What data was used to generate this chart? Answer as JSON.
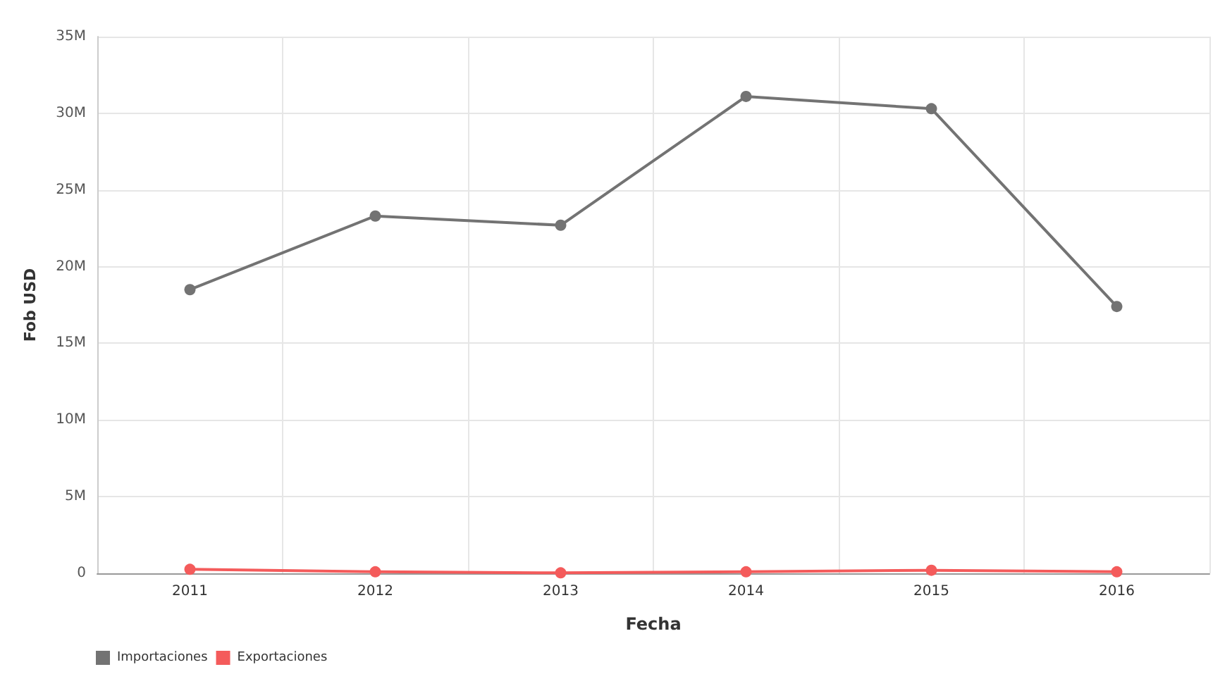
{
  "chart_data": {
    "type": "line",
    "xlabel": "Fecha",
    "ylabel": "Fob USD",
    "categories": [
      "2011",
      "2012",
      "2013",
      "2014",
      "2015",
      "2016"
    ],
    "series": [
      {
        "name": "Importaciones",
        "color": "#737373",
        "values": [
          18500000,
          23300000,
          22700000,
          31100000,
          30300000,
          17400000
        ]
      },
      {
        "name": "Exportaciones",
        "color": "#f45b5b",
        "values": [
          260000,
          100000,
          30000,
          100000,
          200000,
          100000
        ]
      }
    ],
    "ylim": [
      0,
      35000000
    ],
    "yticks": [
      {
        "value": 0,
        "label": "0"
      },
      {
        "value": 5000000,
        "label": "5M"
      },
      {
        "value": 10000000,
        "label": "10M"
      },
      {
        "value": 15000000,
        "label": "15M"
      },
      {
        "value": 20000000,
        "label": "20M"
      },
      {
        "value": 25000000,
        "label": "25M"
      },
      {
        "value": 30000000,
        "label": "30M"
      },
      {
        "value": 35000000,
        "label": "35M"
      }
    ],
    "grid": true,
    "legend": "bottom left",
    "marker": "circle",
    "line_style": "solid"
  }
}
